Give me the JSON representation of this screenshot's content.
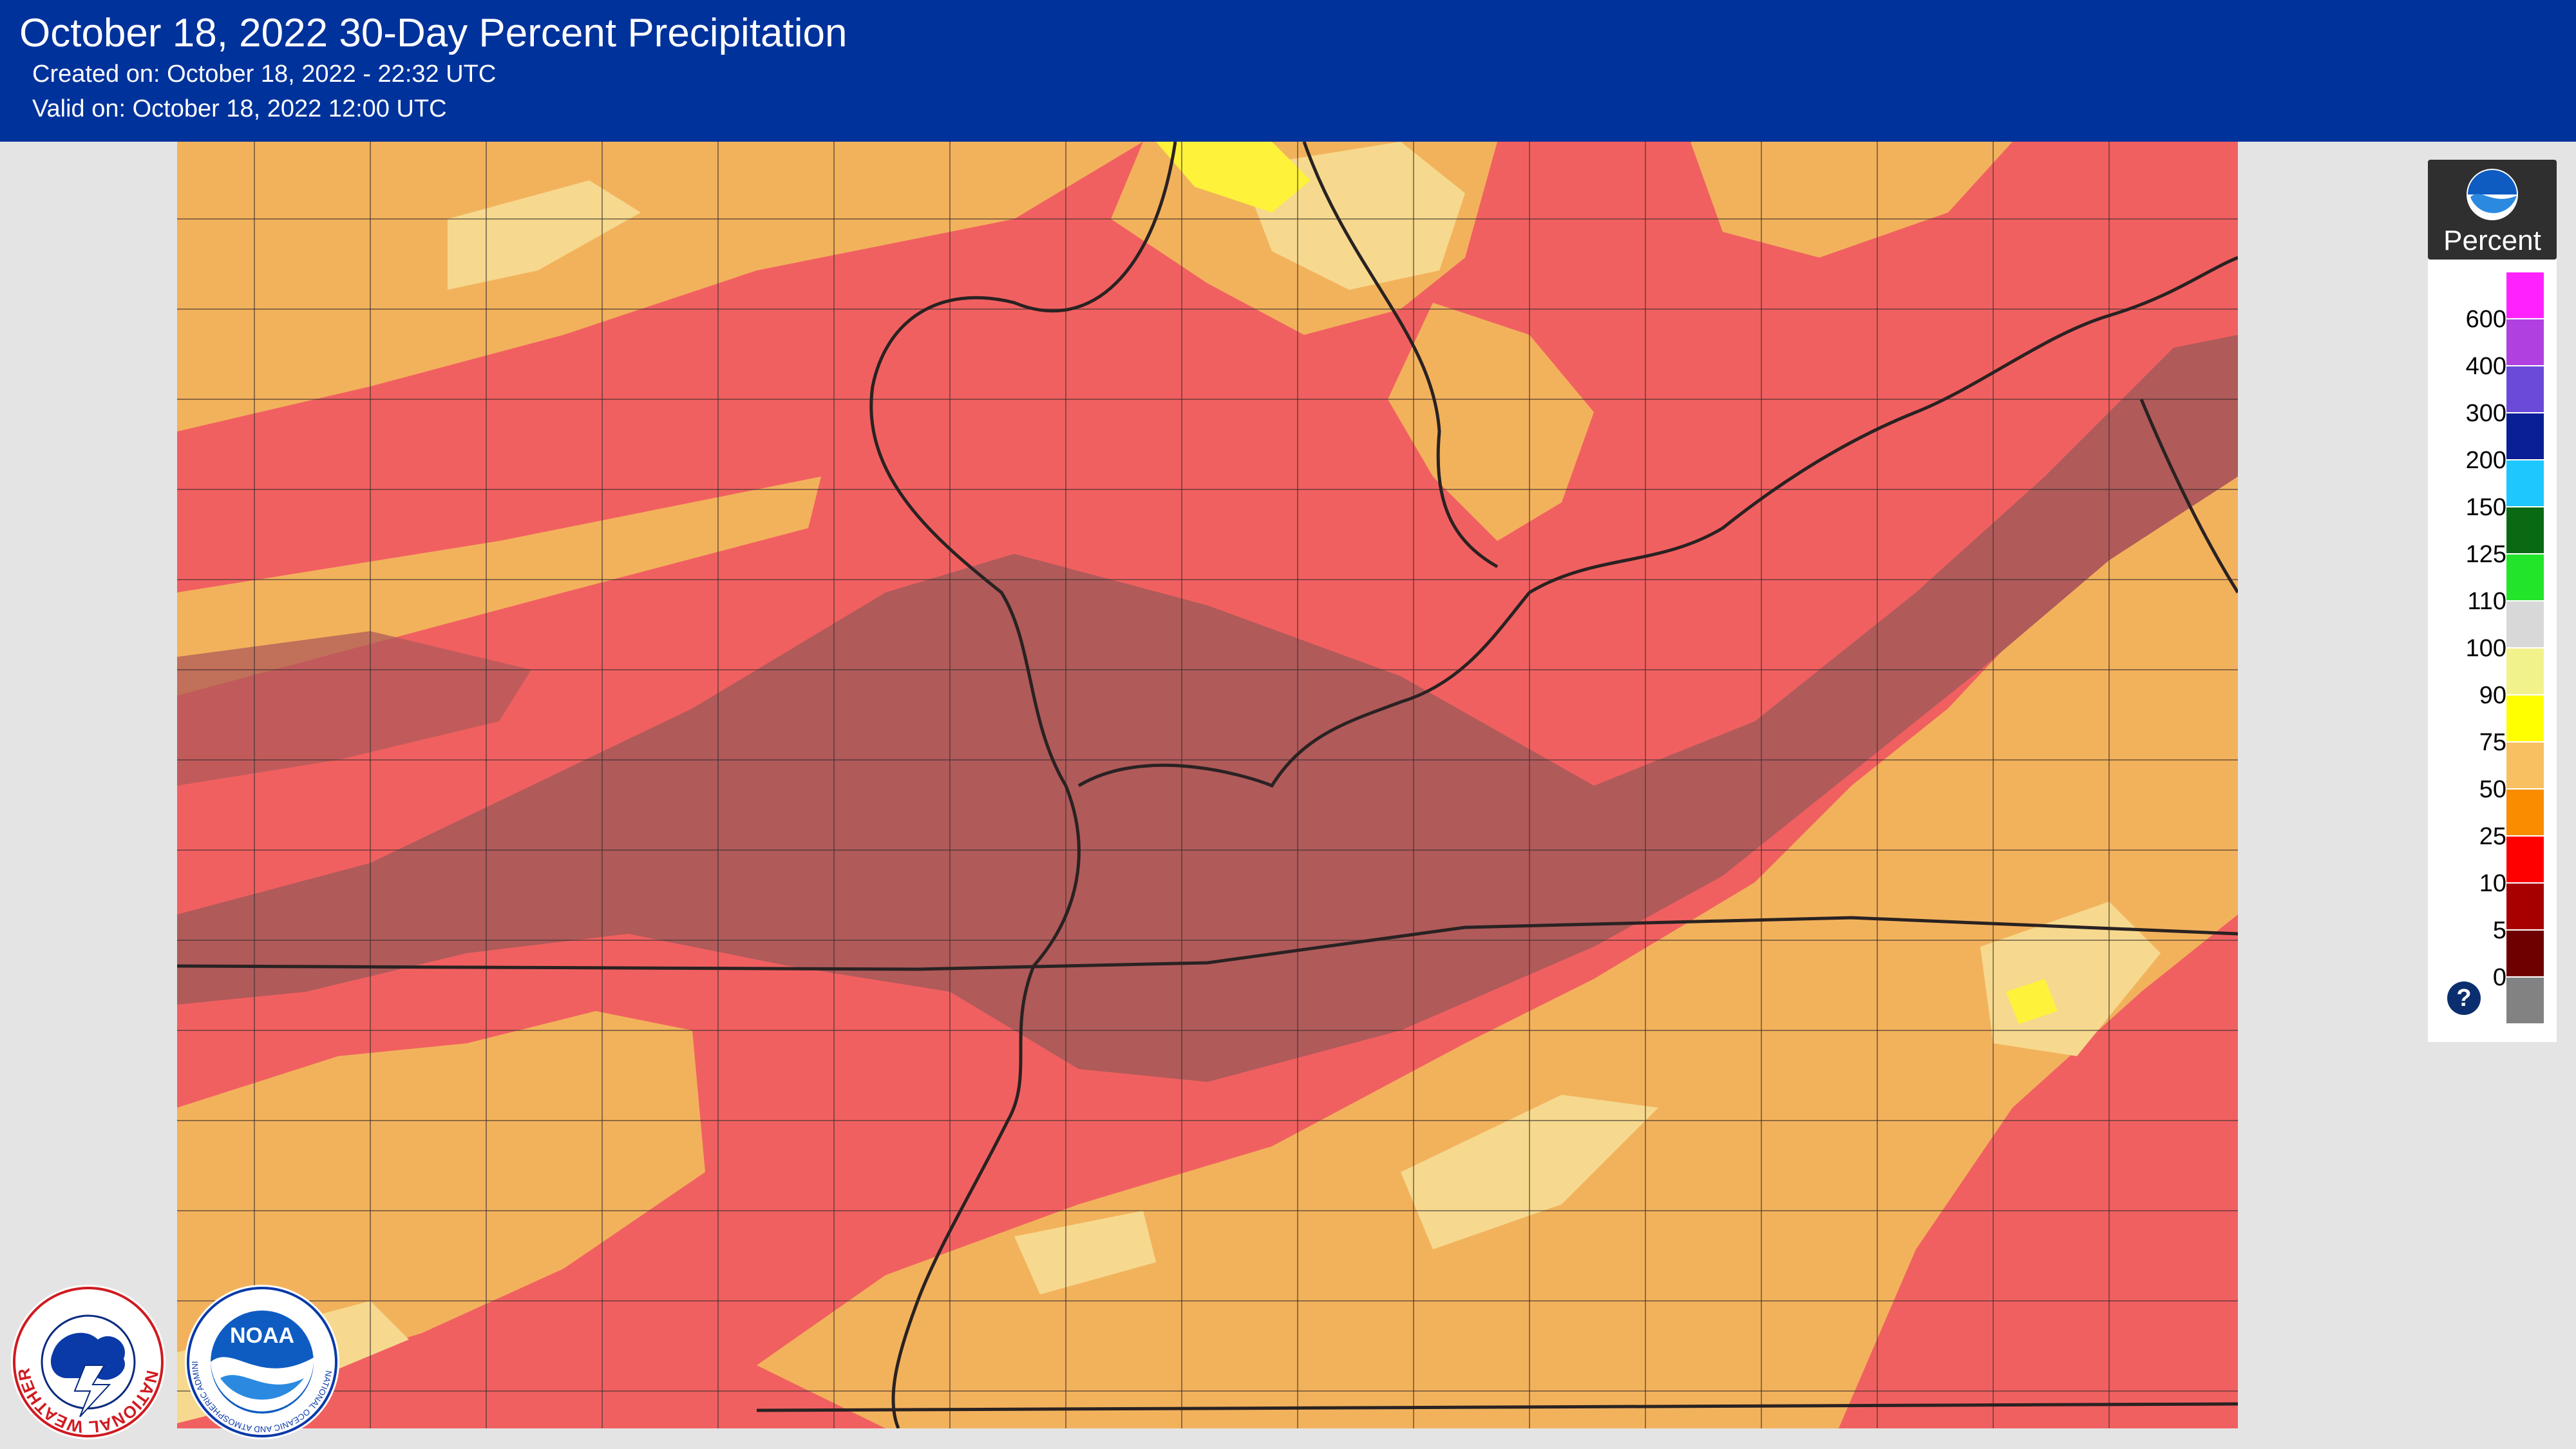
{
  "header": {
    "title": "October 18, 2022 30-Day Percent Precipitation",
    "created": "Created on: October 18, 2022 - 22:32 UTC",
    "valid": "Valid on: October 18, 2022 12:00 UTC"
  },
  "legend": {
    "unit": "Percent",
    "bins": [
      {
        "label": "600",
        "color": "#ff22ff"
      },
      {
        "label": "400",
        "color": "#b040e0"
      },
      {
        "label": "300",
        "color": "#6a4ad8"
      },
      {
        "label": "200",
        "color": "#0a1e96"
      },
      {
        "label": "150",
        "color": "#1ec8ff"
      },
      {
        "label": "125",
        "color": "#0a6a14"
      },
      {
        "label": "110",
        "color": "#22e42a"
      },
      {
        "label": "100",
        "color": "#d8d8d8"
      },
      {
        "label": "90",
        "color": "#f2f28c"
      },
      {
        "label": "75",
        "color": "#ffff00"
      },
      {
        "label": "50",
        "color": "#f8c060"
      },
      {
        "label": "25",
        "color": "#fa8c00"
      },
      {
        "label": "10",
        "color": "#ff0000"
      },
      {
        "label": "5",
        "color": "#a80000"
      },
      {
        "label": "0",
        "color": "#6e0000"
      },
      {
        "label": "",
        "color": "#828282"
      }
    ],
    "help_symbol": "?"
  },
  "map_colors": {
    "below_25": "#f16060",
    "below_10": "#b05a5a",
    "below_75": "#f2b25c",
    "below_90": "#f6d98e",
    "near_100": "#fff23a",
    "lines": "#3a3030"
  },
  "logos": {
    "nws_icon": "nws-logo-icon",
    "noaa_icon": "noaa-logo-icon",
    "noaa_text": "NOAA",
    "nws_ring_text": "NATIONAL WEATHER SERVICE",
    "noaa_ring_text": "NATIONAL OCEANIC AND ATMOSPHERIC ADMINISTRATION · U.S. DEPARTMENT OF COMMERCE"
  }
}
